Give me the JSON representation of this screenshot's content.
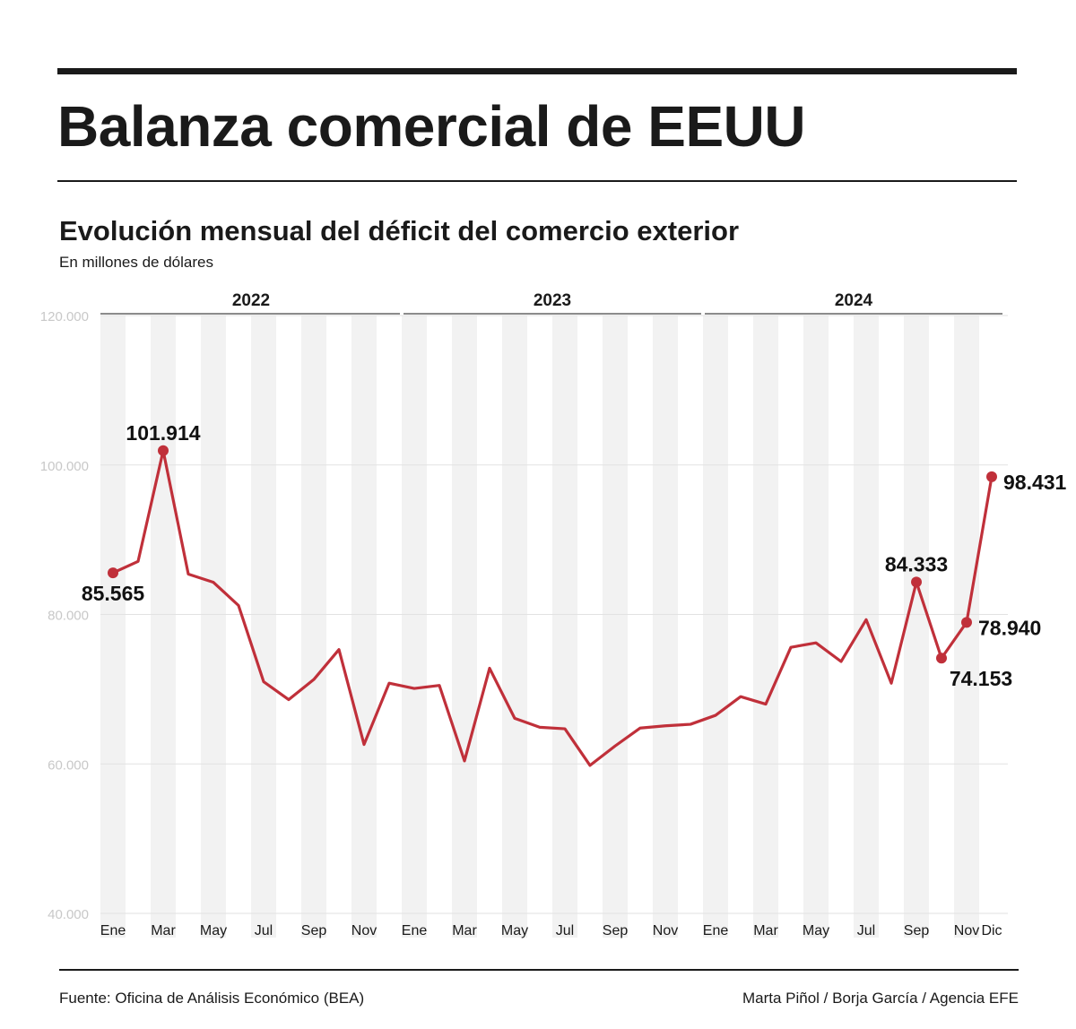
{
  "title": "Balanza comercial de EEUU",
  "subtitle": "Evolución mensual del déficit del comercio exterior",
  "unit": "En millones de dólares",
  "source": "Fuente: Oficina de Análisis Económico (BEA)",
  "credit": "Marta Piñol / Borja García / Agencia EFE",
  "chart_data": {
    "type": "line",
    "title": "Evolución mensual del déficit del comercio exterior",
    "ylabel": "En millones de dólares",
    "ylim": [
      40000,
      120000
    ],
    "yticks": [
      40000,
      60000,
      80000,
      100000,
      120000
    ],
    "ytick_labels": [
      "40.000",
      "60.000",
      "80.000",
      "100.000",
      "120.000"
    ],
    "grid": true,
    "line_color": "#c0303a",
    "band_color": "#f2f2f2",
    "years": [
      {
        "label": "2022",
        "start": 0,
        "end": 11
      },
      {
        "label": "2023",
        "start": 12,
        "end": 23
      },
      {
        "label": "2024",
        "start": 24,
        "end": 35
      }
    ],
    "xtick_labels": [
      {
        "i": 0,
        "label": "Ene"
      },
      {
        "i": 2,
        "label": "Mar"
      },
      {
        "i": 4,
        "label": "May"
      },
      {
        "i": 6,
        "label": "Jul"
      },
      {
        "i": 8,
        "label": "Sep"
      },
      {
        "i": 10,
        "label": "Nov"
      },
      {
        "i": 12,
        "label": "Ene"
      },
      {
        "i": 14,
        "label": "Mar"
      },
      {
        "i": 16,
        "label": "May"
      },
      {
        "i": 18,
        "label": "Jul"
      },
      {
        "i": 20,
        "label": "Sep"
      },
      {
        "i": 22,
        "label": "Nov"
      },
      {
        "i": 24,
        "label": "Ene"
      },
      {
        "i": 26,
        "label": "Mar"
      },
      {
        "i": 28,
        "label": "May"
      },
      {
        "i": 30,
        "label": "Jul"
      },
      {
        "i": 32,
        "label": "Sep"
      },
      {
        "i": 34,
        "label": "Nov"
      },
      {
        "i": 35,
        "label": "Dic"
      }
    ],
    "values": [
      85565,
      87100,
      101914,
      85400,
      84300,
      81200,
      71000,
      68600,
      71300,
      75300,
      62600,
      70800,
      70100,
      70500,
      60400,
      72800,
      66100,
      64900,
      64700,
      59800,
      62400,
      64800,
      65100,
      65300,
      66500,
      69000,
      68000,
      75600,
      76200,
      73700,
      79300,
      70800,
      84333,
      74153,
      78940,
      98431
    ],
    "annotations": [
      {
        "i": 0,
        "label": "85.565",
        "pos": "below"
      },
      {
        "i": 2,
        "label": "101.914",
        "pos": "above"
      },
      {
        "i": 32,
        "label": "84.333",
        "pos": "above"
      },
      {
        "i": 33,
        "label": "74.153",
        "pos": "below-right"
      },
      {
        "i": 34,
        "label": "78.940",
        "pos": "right"
      },
      {
        "i": 35,
        "label": "98.431",
        "pos": "right"
      }
    ]
  }
}
